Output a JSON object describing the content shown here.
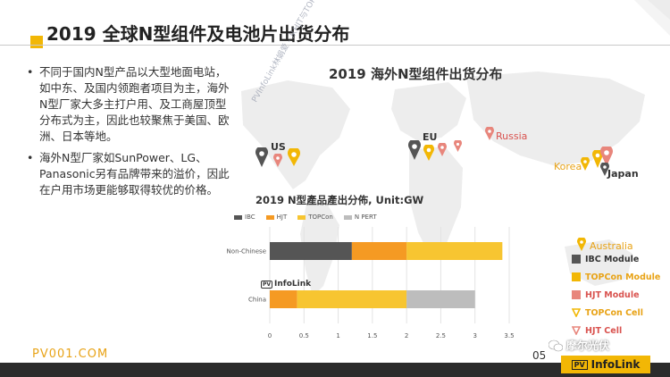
{
  "slide": {
    "title": "2019 全球N型组件及电池片出货分布",
    "bullets": [
      "不同于国内N型产品以大型地面电站，如中东、及国内领跑者项目为主，海外N型厂家大多主打户用、及工商屋顶型分布式为主，因此也较聚焦于美国、欧洲、日本等地。",
      "海外N型厂家如SunPower、LG、Panasonic另有品牌带来的溢价，因此在户用市场更能够取得较优的价格。"
    ],
    "footer_site": "PV001.COM",
    "page_number": "05",
    "wechat_label": "摩尔光伏",
    "brand": "InfoLink",
    "brand_pv": "PV"
  },
  "map": {
    "title": "2019 海外N型组件出货分布",
    "regions": {
      "us": "US",
      "eu": "EU",
      "russia": "Russia",
      "korea": "Korea",
      "japan": "Japan",
      "australia": "Australia"
    },
    "watermark": "PVInfoLink林娟爱 - 从HJT与TOPCon量产技术发展论坛"
  },
  "legend_right": [
    {
      "label": "IBC Module",
      "color": "#555555",
      "shape": "square"
    },
    {
      "label": "TOPCon Module",
      "color": "#f2b705",
      "shape": "square"
    },
    {
      "label": "HJT Module",
      "color": "#e8867c",
      "shape": "square"
    },
    {
      "label": "TOPCon Cell",
      "color": "#f2b705",
      "shape": "triangle"
    },
    {
      "label": "HJT Cell",
      "color": "#e8867c",
      "shape": "triangle"
    }
  ],
  "colors": {
    "accent": "#f2b705",
    "ibc": "#555555",
    "hjt": "#f59a23",
    "topcon": "#f7c531",
    "npert": "#bdbdbd",
    "hjt_pin": "#e8867c"
  },
  "chart_data": {
    "type": "bar",
    "orientation": "horizontal",
    "stacked": true,
    "title": "2019 N型產品產出分佈, Unit:GW",
    "categories": [
      "Non-Chinese",
      "China"
    ],
    "series": [
      {
        "name": "IBC",
        "values": [
          1.2,
          0
        ]
      },
      {
        "name": "HJT",
        "values": [
          0.8,
          0.4
        ]
      },
      {
        "name": "TOPCon",
        "values": [
          1.4,
          1.6
        ]
      },
      {
        "name": "N PERT",
        "values": [
          0,
          1.0
        ]
      }
    ],
    "xlim": [
      0,
      3.5
    ],
    "xticks": [
      "0",
      "0.5",
      "1",
      "1.5",
      "2",
      "2.5",
      "3",
      "3.5"
    ],
    "legend_position": "top",
    "grid": true,
    "watermark": "InfoLink"
  }
}
